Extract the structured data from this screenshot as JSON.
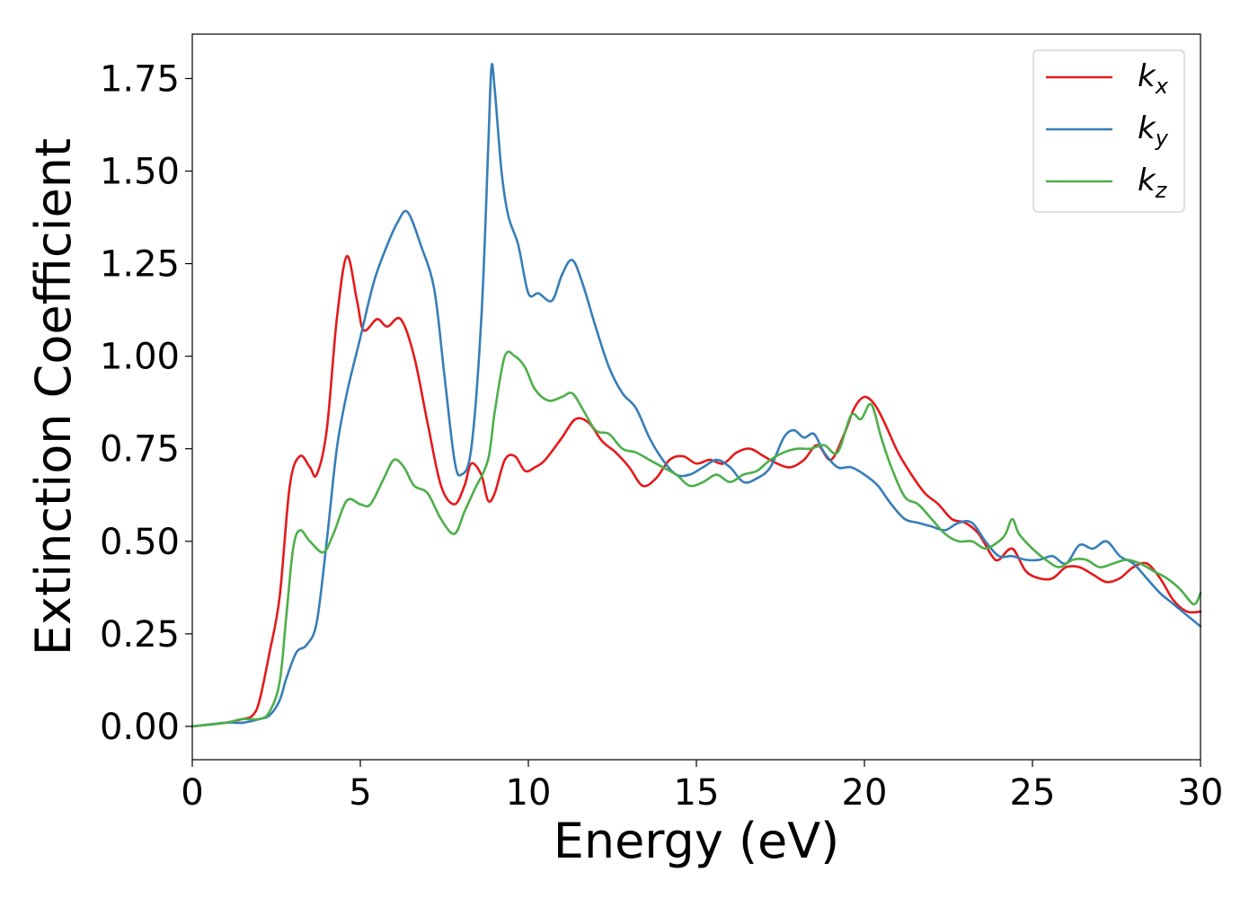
{
  "chart_data": {
    "type": "line",
    "xlabel": "Energy (eV)",
    "ylabel": "Extinction Coefficient",
    "xlim": [
      0,
      30
    ],
    "ylim": [
      -0.09,
      1.87
    ],
    "xticks": [
      0,
      5,
      10,
      15,
      20,
      25,
      30
    ],
    "xtick_labels": [
      "0",
      "5",
      "10",
      "15",
      "20",
      "25",
      "30"
    ],
    "yticks": [
      0.0,
      0.25,
      0.5,
      0.75,
      1.0,
      1.25,
      1.5,
      1.75
    ],
    "ytick_labels": [
      "0.00",
      "0.25",
      "0.50",
      "0.75",
      "1.00",
      "1.25",
      "1.50",
      "1.75"
    ],
    "grid": false,
    "legend_position": "top-right",
    "series": [
      {
        "name": "k_x",
        "label_base": "k",
        "label_sub": "x",
        "color": "#e41a1c",
        "x": [
          0,
          1,
          1.5,
          1.8,
          2.0,
          2.3,
          2.6,
          2.9,
          3.2,
          3.5,
          3.7,
          4.0,
          4.3,
          4.6,
          4.9,
          5.1,
          5.5,
          5.8,
          6.2,
          6.6,
          7.0,
          7.4,
          7.8,
          8.1,
          8.3,
          8.6,
          8.8,
          9.0,
          9.3,
          9.6,
          9.9,
          10.2,
          10.5,
          11.0,
          11.4,
          11.8,
          12.2,
          12.6,
          13.0,
          13.4,
          13.8,
          14.2,
          14.6,
          15.0,
          15.4,
          15.8,
          16.2,
          16.6,
          17.0,
          17.4,
          17.8,
          18.2,
          18.6,
          19.0,
          19.4,
          19.7,
          20.0,
          20.3,
          20.6,
          21.0,
          21.4,
          21.8,
          22.2,
          22.6,
          23.0,
          23.4,
          23.8,
          24.0,
          24.4,
          24.8,
          25.2,
          25.6,
          26.0,
          26.4,
          26.8,
          27.2,
          27.6,
          28.0,
          28.4,
          28.8,
          29.2,
          29.6,
          30
        ],
        "y": [
          0.0,
          0.01,
          0.02,
          0.03,
          0.07,
          0.2,
          0.35,
          0.65,
          0.73,
          0.7,
          0.68,
          0.8,
          1.1,
          1.27,
          1.15,
          1.07,
          1.1,
          1.08,
          1.1,
          1.0,
          0.82,
          0.65,
          0.6,
          0.65,
          0.71,
          0.68,
          0.61,
          0.63,
          0.72,
          0.73,
          0.69,
          0.7,
          0.72,
          0.78,
          0.83,
          0.82,
          0.77,
          0.74,
          0.7,
          0.65,
          0.67,
          0.72,
          0.73,
          0.71,
          0.72,
          0.71,
          0.74,
          0.75,
          0.73,
          0.71,
          0.7,
          0.72,
          0.76,
          0.72,
          0.79,
          0.86,
          0.89,
          0.87,
          0.82,
          0.74,
          0.68,
          0.63,
          0.6,
          0.56,
          0.55,
          0.52,
          0.46,
          0.45,
          0.48,
          0.42,
          0.4,
          0.4,
          0.43,
          0.43,
          0.41,
          0.39,
          0.4,
          0.43,
          0.44,
          0.4,
          0.34,
          0.31,
          0.31
        ]
      },
      {
        "name": "k_y",
        "label_base": "k",
        "label_sub": "y",
        "color": "#377eb8",
        "x": [
          0,
          1,
          1.5,
          2.0,
          2.3,
          2.6,
          2.8,
          3.1,
          3.4,
          3.7,
          4.0,
          4.3,
          4.6,
          5.0,
          5.4,
          5.8,
          6.1,
          6.4,
          6.8,
          7.2,
          7.5,
          7.8,
          8.0,
          8.3,
          8.6,
          8.8,
          8.9,
          9.0,
          9.2,
          9.4,
          9.7,
          10.0,
          10.3,
          10.7,
          11.0,
          11.3,
          11.6,
          12.0,
          12.4,
          12.8,
          13.2,
          13.6,
          14.0,
          14.4,
          14.8,
          15.2,
          15.6,
          16.0,
          16.4,
          16.8,
          17.2,
          17.6,
          17.9,
          18.2,
          18.5,
          18.8,
          19.2,
          19.6,
          20.0,
          20.4,
          20.8,
          21.2,
          21.6,
          22.0,
          22.4,
          22.8,
          23.2,
          23.6,
          24.0,
          24.4,
          24.8,
          25.2,
          25.6,
          26.0,
          26.4,
          26.8,
          27.2,
          27.6,
          28.0,
          28.4,
          28.8,
          29.2,
          29.6,
          30
        ],
        "y": [
          0.0,
          0.01,
          0.01,
          0.02,
          0.03,
          0.07,
          0.13,
          0.2,
          0.22,
          0.28,
          0.5,
          0.75,
          0.9,
          1.05,
          1.2,
          1.3,
          1.36,
          1.39,
          1.3,
          1.18,
          0.95,
          0.72,
          0.68,
          0.75,
          1.1,
          1.55,
          1.78,
          1.72,
          1.5,
          1.38,
          1.3,
          1.17,
          1.17,
          1.15,
          1.22,
          1.26,
          1.2,
          1.08,
          0.97,
          0.9,
          0.86,
          0.78,
          0.72,
          0.68,
          0.68,
          0.7,
          0.72,
          0.7,
          0.66,
          0.67,
          0.7,
          0.78,
          0.8,
          0.78,
          0.79,
          0.74,
          0.7,
          0.7,
          0.68,
          0.65,
          0.6,
          0.56,
          0.55,
          0.54,
          0.53,
          0.55,
          0.55,
          0.5,
          0.46,
          0.46,
          0.45,
          0.45,
          0.46,
          0.44,
          0.49,
          0.48,
          0.5,
          0.46,
          0.44,
          0.4,
          0.36,
          0.33,
          0.3,
          0.27
        ]
      },
      {
        "name": "k_z",
        "label_base": "k",
        "label_sub": "z",
        "color": "#4daf4a",
        "x": [
          0,
          1,
          1.5,
          2.0,
          2.3,
          2.6,
          2.8,
          3.0,
          3.2,
          3.5,
          3.9,
          4.2,
          4.6,
          5.0,
          5.3,
          5.7,
          6.0,
          6.3,
          6.6,
          7.0,
          7.4,
          7.8,
          8.1,
          8.4,
          8.8,
          9.0,
          9.3,
          9.6,
          9.9,
          10.2,
          10.6,
          11.0,
          11.3,
          11.6,
          12.0,
          12.4,
          12.8,
          13.2,
          13.6,
          14.0,
          14.4,
          14.8,
          15.2,
          15.6,
          16.0,
          16.4,
          16.8,
          17.2,
          17.6,
          18.0,
          18.4,
          18.8,
          19.2,
          19.6,
          19.9,
          20.2,
          20.5,
          20.8,
          21.2,
          21.6,
          22.0,
          22.4,
          22.8,
          23.2,
          23.6,
          24.0,
          24.2,
          24.4,
          24.6,
          25.0,
          25.4,
          25.8,
          26.2,
          26.6,
          27.0,
          27.4,
          27.8,
          28.2,
          28.6,
          29.0,
          29.4,
          29.8,
          30
        ],
        "y": [
          0.0,
          0.01,
          0.02,
          0.02,
          0.04,
          0.12,
          0.3,
          0.48,
          0.53,
          0.5,
          0.47,
          0.52,
          0.61,
          0.6,
          0.6,
          0.67,
          0.72,
          0.7,
          0.65,
          0.63,
          0.56,
          0.52,
          0.58,
          0.64,
          0.72,
          0.85,
          1.0,
          1.0,
          0.97,
          0.91,
          0.88,
          0.89,
          0.9,
          0.86,
          0.8,
          0.79,
          0.75,
          0.74,
          0.72,
          0.7,
          0.68,
          0.65,
          0.66,
          0.68,
          0.66,
          0.68,
          0.69,
          0.72,
          0.74,
          0.75,
          0.75,
          0.76,
          0.74,
          0.84,
          0.83,
          0.87,
          0.78,
          0.7,
          0.62,
          0.6,
          0.56,
          0.52,
          0.5,
          0.5,
          0.48,
          0.5,
          0.52,
          0.56,
          0.52,
          0.48,
          0.45,
          0.43,
          0.45,
          0.45,
          0.43,
          0.44,
          0.45,
          0.44,
          0.42,
          0.4,
          0.37,
          0.33,
          0.36
        ]
      }
    ]
  }
}
